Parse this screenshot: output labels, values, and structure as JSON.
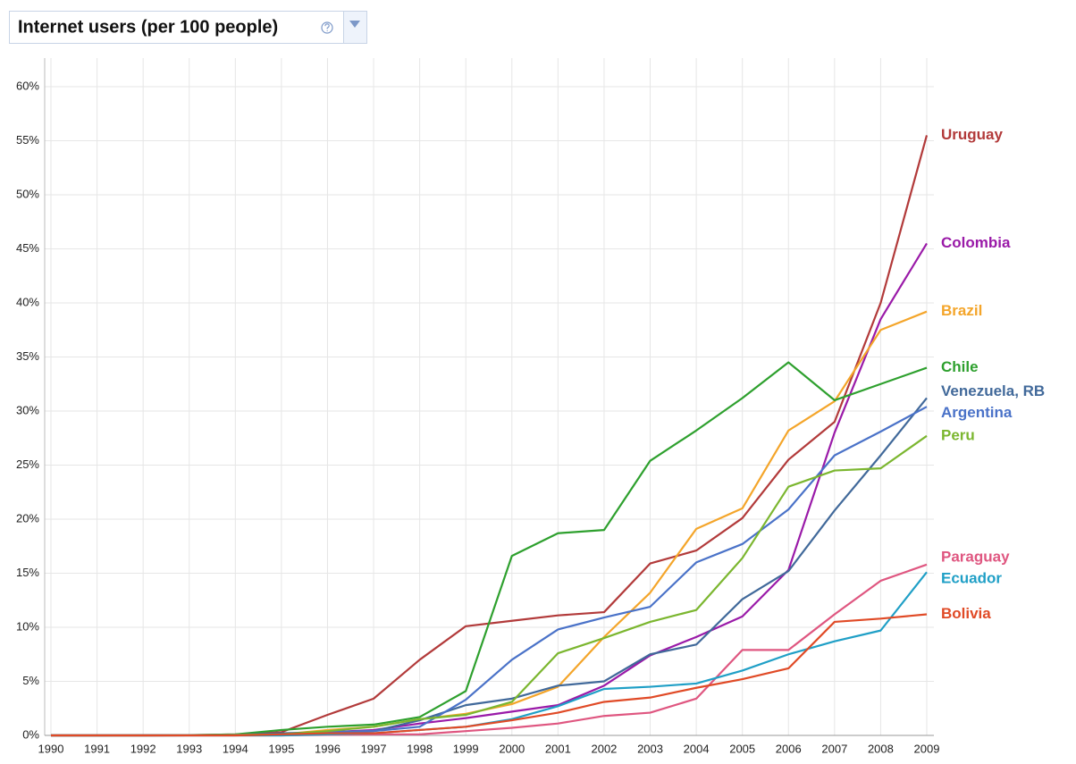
{
  "chart_data": {
    "type": "line",
    "title": "Internet users (per 100 people)",
    "x": [
      1990,
      1991,
      1992,
      1993,
      1994,
      1995,
      1996,
      1997,
      1998,
      1999,
      2000,
      2001,
      2002,
      2003,
      2004,
      2005,
      2006,
      2007,
      2008,
      2009
    ],
    "xlim": [
      1990,
      2009
    ],
    "xticks": [
      1990,
      1991,
      1992,
      1993,
      1994,
      1995,
      1996,
      1997,
      1998,
      1999,
      2000,
      2001,
      2002,
      2003,
      2004,
      2005,
      2006,
      2007,
      2008,
      2009
    ],
    "ylim": [
      0,
      60
    ],
    "yticks": [
      {
        "value": 0,
        "label": "0%"
      },
      {
        "value": 5,
        "label": "5%"
      },
      {
        "value": 10,
        "label": "10%"
      },
      {
        "value": 15,
        "label": "15%"
      },
      {
        "value": 20,
        "label": "20%"
      },
      {
        "value": 25,
        "label": "25%"
      },
      {
        "value": 30,
        "label": "30%"
      },
      {
        "value": 35,
        "label": "35%"
      },
      {
        "value": 40,
        "label": "40%"
      },
      {
        "value": 45,
        "label": "45%"
      },
      {
        "value": 50,
        "label": "50%"
      },
      {
        "value": 55,
        "label": "55%"
      },
      {
        "value": 60,
        "label": "60%"
      }
    ],
    "grid": true,
    "series": [
      {
        "name": "Uruguay",
        "color": "#b23a3a",
        "values": [
          0,
          0,
          0,
          0.02,
          0.1,
          0.3,
          1.9,
          3.4,
          7.0,
          10.1,
          10.6,
          11.1,
          11.4,
          15.9,
          17.1,
          20.1,
          25.5,
          29.0,
          40.0,
          55.5
        ]
      },
      {
        "name": "Colombia",
        "color": "#9a1aa8",
        "values": [
          0,
          0,
          0,
          0.01,
          0.05,
          0.1,
          0.3,
          0.5,
          1.1,
          1.6,
          2.2,
          2.8,
          4.6,
          7.4,
          9.1,
          11.0,
          15.3,
          28.0,
          38.5,
          45.5
        ]
      },
      {
        "name": "Brazil",
        "color": "#f4a52a",
        "values": [
          0,
          0,
          0,
          0.01,
          0.04,
          0.1,
          0.5,
          0.8,
          1.5,
          2.0,
          2.9,
          4.5,
          9.1,
          13.2,
          19.1,
          21.0,
          28.2,
          30.9,
          37.5,
          39.2
        ]
      },
      {
        "name": "Chile",
        "color": "#2ea02e",
        "values": [
          0,
          0,
          0.01,
          0.03,
          0.1,
          0.5,
          0.8,
          1.0,
          1.7,
          4.1,
          16.6,
          18.7,
          19.0,
          25.4,
          28.2,
          31.2,
          34.5,
          31.0,
          32.5,
          34.0
        ]
      },
      {
        "name": "Venezuela, RB",
        "color": "#41699a",
        "values": [
          0,
          0,
          0.01,
          0.02,
          0.05,
          0.2,
          0.3,
          0.4,
          1.4,
          2.8,
          3.4,
          4.6,
          5.0,
          7.5,
          8.4,
          12.6,
          15.2,
          20.8,
          25.9,
          31.2
        ]
      },
      {
        "name": "Argentina",
        "color": "#4a72c8",
        "values": [
          0,
          0,
          0,
          0.01,
          0.04,
          0.1,
          0.3,
          0.4,
          0.8,
          3.3,
          7.0,
          9.8,
          10.9,
          11.9,
          16.0,
          17.7,
          20.9,
          25.9,
          28.1,
          30.4
        ]
      },
      {
        "name": "Peru",
        "color": "#7bb62f",
        "values": [
          0,
          0,
          0,
          0.01,
          0.05,
          0.1,
          0.4,
          0.8,
          1.5,
          1.9,
          3.1,
          7.6,
          9.0,
          10.5,
          11.6,
          16.4,
          23.0,
          24.5,
          24.7,
          27.7
        ]
      },
      {
        "name": "Paraguay",
        "color": "#df5680",
        "values": [
          0,
          0,
          0,
          0,
          0,
          0,
          0.05,
          0.1,
          0.1,
          0.4,
          0.7,
          1.1,
          1.8,
          2.1,
          3.4,
          7.9,
          7.9,
          11.2,
          14.3,
          15.8
        ]
      },
      {
        "name": "Ecuador",
        "color": "#1f9fc6",
        "values": [
          0,
          0,
          0,
          0,
          0,
          0,
          0.1,
          0.2,
          0.5,
          0.8,
          1.5,
          2.7,
          4.3,
          4.5,
          4.8,
          6.0,
          7.5,
          8.7,
          9.7,
          15.1
        ]
      },
      {
        "name": "Bolivia",
        "color": "#e04a26",
        "values": [
          0,
          0,
          0,
          0,
          0,
          0.1,
          0.2,
          0.2,
          0.5,
          0.8,
          1.4,
          2.1,
          3.1,
          3.5,
          4.4,
          5.2,
          6.2,
          10.5,
          10.8,
          11.2
        ]
      }
    ]
  }
}
